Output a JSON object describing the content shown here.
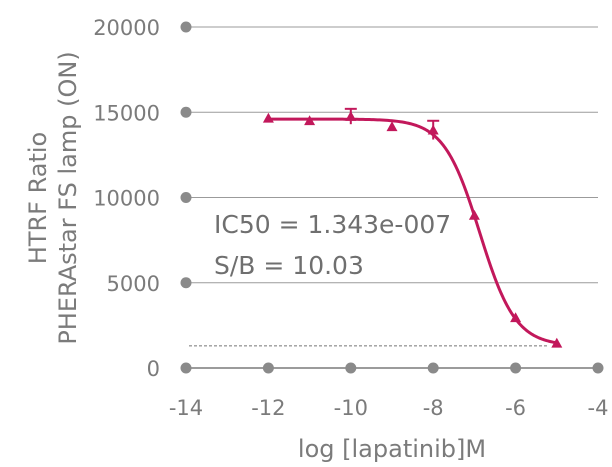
{
  "chart_data": {
    "type": "scatter",
    "title": "",
    "xlabel": "log [lapatinib]M",
    "ylabel_lines": [
      "HTRF Ratio",
      "PHERAstar FS lamp (ON)"
    ],
    "xlim": [
      -14,
      -4
    ],
    "ylim": [
      0,
      20000
    ],
    "x_ticks": [
      -14,
      -12,
      -10,
      -8,
      -6,
      -4
    ],
    "y_ticks": [
      0,
      5000,
      10000,
      15000,
      20000
    ],
    "x_tick_labels": [
      "-14",
      "-12",
      "-10",
      "-8",
      "-6",
      "-4"
    ],
    "y_tick_labels": [
      "0",
      "5000",
      "10000",
      "15000",
      "20000"
    ],
    "grid": "horizontal",
    "legend": "none",
    "series": [
      {
        "points": [
          {
            "x": -12,
            "y": 14650,
            "err": 0
          },
          {
            "x": -11,
            "y": 14500,
            "err": 0
          },
          {
            "x": -10,
            "y": 14750,
            "err": 450
          },
          {
            "x": -9,
            "y": 14150,
            "err": 0
          },
          {
            "x": -8,
            "y": 13950,
            "err": 550
          },
          {
            "x": -7,
            "y": 8950,
            "err": 0
          },
          {
            "x": -6,
            "y": 2950,
            "err": 0
          },
          {
            "x": -5,
            "y": 1450,
            "err": 0
          }
        ],
        "fit": {
          "top": 14600,
          "bottom": 1300,
          "log_ic50": -6.872,
          "hill": 1.0,
          "x_range": [
            -12,
            -5
          ]
        }
      }
    ],
    "baseline": {
      "y": 1300,
      "style": "dashed"
    },
    "annotations": [
      "IC50 = 1.343e-007",
      "S/B = 10.03"
    ],
    "colors": {
      "series": "#c2185b",
      "axis_line": "#9b9b9b",
      "tick_dot": "#8a8a8a",
      "baseline": "#9b9b9b",
      "text": "#7b7b7b"
    }
  }
}
